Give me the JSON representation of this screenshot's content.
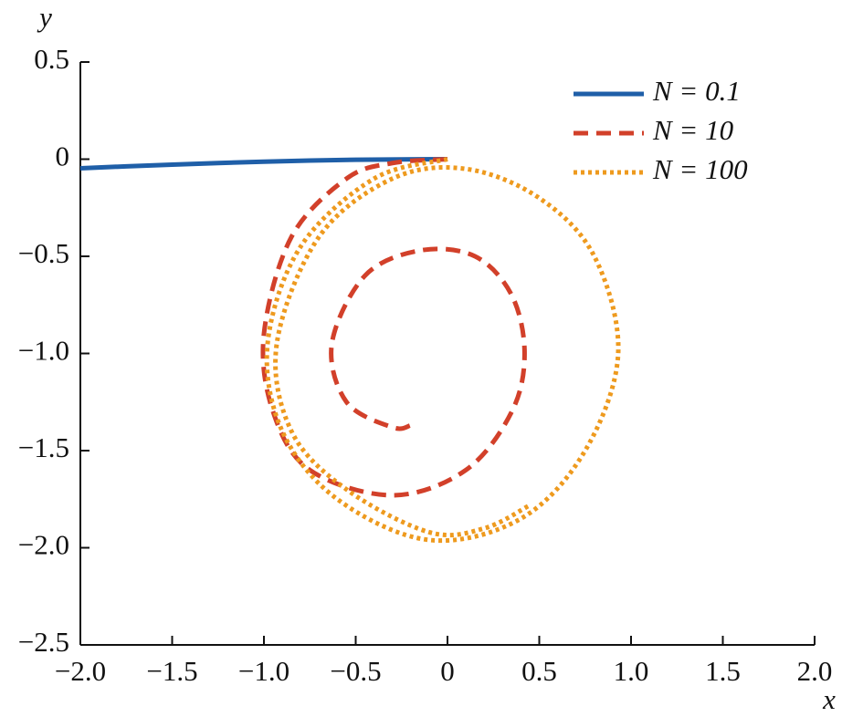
{
  "chart_data": {
    "type": "line",
    "xlabel": "x",
    "ylabel": "y",
    "xlim": [
      -2.0,
      2.0
    ],
    "ylim": [
      -2.5,
      0.5
    ],
    "xticks": [
      {
        "value": -2.0,
        "label": "−2.0"
      },
      {
        "value": -1.5,
        "label": "−1.5"
      },
      {
        "value": -1.0,
        "label": "−1.0"
      },
      {
        "value": -0.5,
        "label": "−0.5"
      },
      0,
      0.5,
      {
        "value": 1.0,
        "label": "1.0"
      },
      1.5,
      {
        "value": 2.0,
        "label": "2.0"
      }
    ],
    "yticks": [
      0.5,
      0,
      {
        "value": -0.5,
        "label": "−0.5"
      },
      {
        "value": -1.0,
        "label": "−1.0"
      },
      {
        "value": -1.5,
        "label": "−1.5"
      },
      {
        "value": -2.0,
        "label": "−2.0"
      },
      {
        "value": -2.5,
        "label": "−2.5"
      }
    ],
    "legend": "upper right",
    "series": [
      {
        "name": "N = 0.1",
        "color": "#1f5fa8",
        "style": "solid",
        "x": [
          0,
          -0.25,
          -0.5,
          -0.75,
          -1.0,
          -1.25,
          -1.5,
          -1.75,
          -2.0
        ],
        "values": [
          0,
          -0.001,
          -0.003,
          -0.007,
          -0.013,
          -0.02,
          -0.028,
          -0.037,
          -0.047
        ]
      },
      {
        "name": "N = 10",
        "color": "#d2402a",
        "style": "dashed",
        "x": [
          0,
          -0.3,
          -0.55,
          -0.85,
          -1.0,
          -0.95,
          -0.75,
          -0.3,
          0.1,
          0.35,
          0.42,
          0.35,
          0.15,
          -0.15,
          -0.45,
          -0.63,
          -0.55,
          -0.3,
          -0.2
        ],
        "values": [
          0,
          -0.02,
          -0.1,
          -0.4,
          -0.9,
          -1.3,
          -1.6,
          -1.73,
          -1.6,
          -1.3,
          -1.0,
          -0.7,
          -0.5,
          -0.47,
          -0.6,
          -0.95,
          -1.25,
          -1.38,
          -1.37
        ]
      },
      {
        "name": "N = 100",
        "color": "#ee9a1e",
        "style": "dotted",
        "x": [
          0,
          -0.4,
          -0.8,
          -0.98,
          -0.9,
          -0.6,
          -0.1,
          0.4,
          0.75,
          0.93,
          0.8,
          0.5,
          0.1,
          -0.3,
          -0.7,
          -0.93,
          -0.85,
          -0.55,
          -0.1,
          0.2,
          0.45
        ],
        "values": [
          0,
          -0.1,
          -0.45,
          -0.95,
          -1.4,
          -1.75,
          -1.96,
          -1.85,
          -1.5,
          -1.0,
          -0.5,
          -0.2,
          -0.05,
          -0.1,
          -0.4,
          -0.95,
          -1.4,
          -1.7,
          -1.92,
          -1.9,
          -1.78
        ]
      }
    ]
  }
}
